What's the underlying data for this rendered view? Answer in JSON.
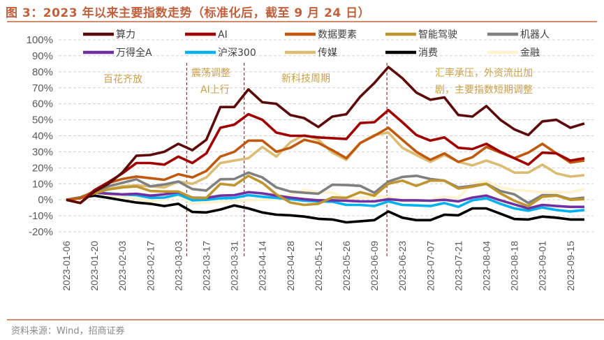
{
  "title": "图 3：2023 年以来主要指数走势（标准化后，截至 9 月 24 日）",
  "source": "资料来源：Wind，招商证券",
  "chart_data": {
    "type": "line",
    "title": "图 3：2023 年以来主要指数走势（标准化后，截至 9 月 24 日）",
    "xlabel": "",
    "ylabel": "",
    "ylim": [
      -20,
      100
    ],
    "yticks": [
      "100%",
      "90%",
      "80%",
      "70%",
      "60%",
      "50%",
      "40%",
      "30%",
      "20%",
      "10%",
      "0%",
      "-10%",
      "-20%"
    ],
    "grid": true,
    "legend_placement": "top",
    "x": [
      "2023-01-06",
      "2023-01-13",
      "2023-01-20",
      "2023-01-27",
      "2023-02-03",
      "2023-02-10",
      "2023-02-17",
      "2023-02-24",
      "2023-03-03",
      "2023-03-10",
      "2023-03-17",
      "2023-03-24",
      "2023-03-31",
      "2023-04-07",
      "2023-04-14",
      "2023-04-21",
      "2023-04-28",
      "2023-05-05",
      "2023-05-12",
      "2023-05-19",
      "2023-05-26",
      "2023-06-02",
      "2023-06-09",
      "2023-06-16",
      "2023-06-23",
      "2023-06-30",
      "2023-07-07",
      "2023-07-14",
      "2023-07-21",
      "2023-07-28",
      "2023-08-04",
      "2023-08-11",
      "2023-08-18",
      "2023-08-25",
      "2023-09-01",
      "2023-09-08",
      "2023-09-15",
      "2023-09-22"
    ],
    "xtick_labels": [
      "2023-01-06",
      "2023-01-20",
      "2023-02-03",
      "2023-02-17",
      "2023-03-03",
      "2023-03-17",
      "2023-03-31",
      "2023-04-14",
      "2023-04-28",
      "2023-05-12",
      "2023-05-26",
      "2023-06-09",
      "2023-06-23",
      "2023-07-07",
      "2023-07-21",
      "2023-08-04",
      "2023-08-18",
      "2023-09-01",
      "2023-09-15"
    ],
    "series": [
      {
        "name": "算力",
        "color": "#5c0a0a",
        "values": [
          0,
          -2,
          5,
          10,
          17,
          27.5,
          28,
          30,
          35,
          31,
          37.5,
          58,
          58,
          69,
          61,
          60,
          53,
          51,
          45.5,
          52,
          53.5,
          64.5,
          73,
          83,
          76,
          67,
          62.5,
          64,
          53,
          52,
          58.6,
          50,
          44,
          40.5,
          49,
          50,
          45,
          47.7
        ]
      },
      {
        "name": "AI",
        "color": "#a00000",
        "values": [
          0,
          -2,
          6,
          11,
          16.5,
          23,
          23,
          22,
          27,
          23,
          29,
          45,
          47,
          53.5,
          50,
          42,
          40,
          40,
          39,
          38.5,
          38,
          48,
          48.5,
          56,
          48.5,
          40.5,
          37,
          39,
          32.5,
          31.7,
          35,
          30,
          26,
          22,
          29.5,
          29,
          24.5,
          26
        ]
      },
      {
        "name": "数据要素",
        "color": "#c0590e",
        "values": [
          0,
          1,
          5.5,
          10.5,
          13,
          14.5,
          13.5,
          12.5,
          16,
          14,
          18,
          27,
          30,
          37,
          37,
          30,
          32.5,
          37.5,
          35.5,
          31,
          26,
          35.5,
          40,
          45,
          37.5,
          30,
          25,
          29,
          23.7,
          26.6,
          33,
          29.5,
          26,
          29.5,
          35,
          29,
          23.3,
          24.5
        ]
      },
      {
        "name": "智能驾驶",
        "color": "#bf9530",
        "values": [
          0,
          1,
          4,
          6.5,
          7.7,
          8.4,
          5.5,
          5.2,
          5.2,
          1.2,
          1.2,
          10,
          9,
          15,
          10.6,
          3.4,
          -1.7,
          -3.2,
          -2.5,
          1.5,
          1.2,
          4.8,
          2.6,
          10,
          12,
          8.7,
          12,
          12,
          7,
          8.2,
          10,
          4,
          -0.6,
          -4,
          1.9,
          2.6,
          0,
          0.4
        ]
      },
      {
        "name": "机器人",
        "color": "#808080",
        "values": [
          0,
          1.5,
          5,
          8.4,
          10.6,
          12.8,
          8.4,
          9.6,
          11.4,
          6.7,
          5.8,
          12.8,
          13,
          17,
          14,
          7.7,
          5.2,
          4.4,
          3.8,
          9.4,
          9.2,
          8.7,
          4.4,
          11.4,
          14.3,
          15,
          13,
          12,
          7.7,
          8.7,
          10,
          5.5,
          3.4,
          -2,
          2.9,
          2.9,
          0.4,
          1.4
        ]
      },
      {
        "name": "万得全A",
        "color": "#7030a0",
        "values": [
          0,
          1.5,
          4.5,
          3.8,
          3.4,
          3.8,
          2.6,
          3.4,
          4.8,
          1.4,
          1.2,
          2.6,
          2.9,
          4.8,
          4,
          2.6,
          1.4,
          0.4,
          -0.3,
          -0.3,
          -0.6,
          -1,
          -1,
          0.4,
          -0.3,
          -0.3,
          -0.6,
          0,
          -1,
          1.4,
          2.6,
          -0.3,
          -2.9,
          -5.4,
          -3.2,
          -3.9,
          -4.4,
          -4.4
        ]
      },
      {
        "name": "沪深300",
        "color": "#00b0f0",
        "values": [
          0,
          1.2,
          4.5,
          4,
          3.4,
          2.9,
          1.2,
          1.4,
          3.4,
          -0.3,
          0,
          0.9,
          1.2,
          2.9,
          1.9,
          1.2,
          0.4,
          -0.6,
          -1,
          -1.2,
          -3.2,
          -3.2,
          -3.9,
          -1,
          -3.2,
          -3.5,
          -3.9,
          -2,
          -4.4,
          -0.3,
          0.9,
          -2.5,
          -5.4,
          -6.8,
          -4.8,
          -6.4,
          -7.3,
          -6.4
        ]
      },
      {
        "name": "传媒",
        "color": "#dcbc72",
        "values": [
          0,
          1.5,
          4.5,
          6.7,
          8.4,
          9,
          8.4,
          7.7,
          11.4,
          10,
          14,
          23,
          24.5,
          26,
          33,
          27,
          36,
          40.5,
          37.5,
          29.5,
          25,
          35.5,
          40.5,
          42,
          32.5,
          28,
          23.7,
          28,
          23.7,
          21.5,
          24.5,
          21.5,
          17,
          17,
          22,
          16.5,
          14.5,
          15.4
        ]
      },
      {
        "name": "消费",
        "color": "#000000",
        "values": [
          0,
          1.2,
          2.6,
          1.2,
          -0.3,
          -1.7,
          -2.5,
          -3.9,
          -2.5,
          -7.6,
          -7.9,
          -6.1,
          -3.5,
          -5.4,
          -7.9,
          -9.3,
          -9.7,
          -10.5,
          -11.9,
          -12.3,
          -14.1,
          -13.4,
          -12.7,
          -7.3,
          -11.2,
          -12.7,
          -12.7,
          -9.3,
          -9.7,
          -5.4,
          -5.4,
          -8.7,
          -12,
          -12.3,
          -10.5,
          -11.2,
          -12.3,
          -12.3
        ]
      },
      {
        "name": "金融",
        "color": "#fff2cc",
        "values": [
          0,
          1.5,
          4.5,
          2.9,
          1.9,
          0.9,
          -1,
          0.4,
          2.6,
          -2.5,
          -1.7,
          -1.3,
          -1,
          -0.3,
          0,
          0.4,
          2.9,
          6.2,
          4.8,
          4.4,
          0.9,
          1.2,
          1.9,
          1.9,
          -1,
          -1,
          -0.3,
          1.9,
          1.2,
          10,
          11.7,
          7.7,
          6.2,
          5.5,
          4.8,
          4.8,
          4.8,
          6.7
        ]
      }
    ],
    "annotations": {
      "phase1": "百花齐放",
      "phase2_line1": "震荡调整",
      "phase2_line2": "AI上行",
      "phase3": "新科技周期",
      "phase4_line1": "汇率承压，外资流出加",
      "phase4_line2": "剧，主要指数短期调整"
    },
    "annotation_color": "#c9a04a",
    "divider_color": "#8b3a3a"
  }
}
